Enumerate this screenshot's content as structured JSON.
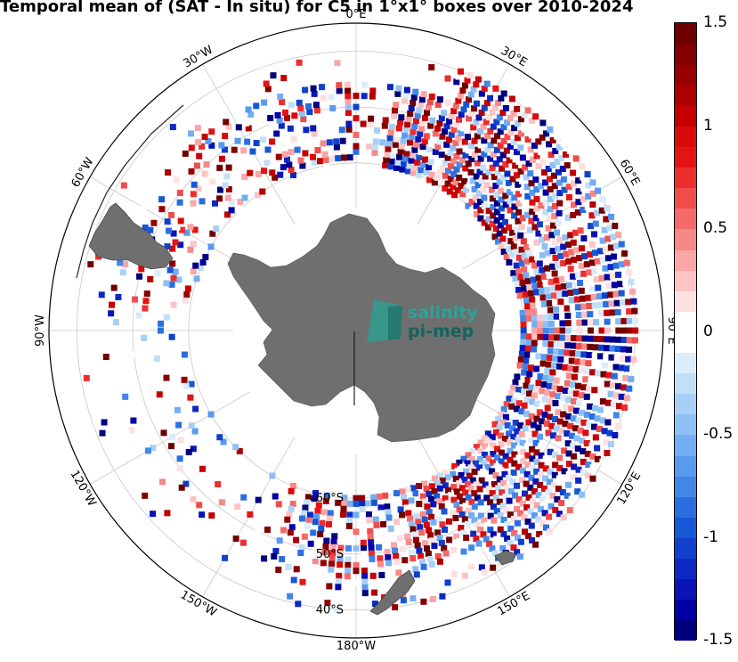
{
  "title": "Temporal mean of (SAT - In situ) for C5 in 1°x1° boxes over 2010-2024",
  "map": {
    "projection": "south-polar-stereographic",
    "longitude_labels": [
      {
        "text": "0°E",
        "lon": 0
      },
      {
        "text": "30°E",
        "lon": 30
      },
      {
        "text": "60°E",
        "lon": 60
      },
      {
        "text": "90°E",
        "lon": 90
      },
      {
        "text": "120°E",
        "lon": 120
      },
      {
        "text": "150°E",
        "lon": 150
      },
      {
        "text": "180°W",
        "lon": 180
      },
      {
        "text": "150°W",
        "lon": -150
      },
      {
        "text": "120°W",
        "lon": -120
      },
      {
        "text": "90°W",
        "lon": -90
      },
      {
        "text": "60°W",
        "lon": -60
      },
      {
        "text": "30°W",
        "lon": -30
      }
    ],
    "latitude_labels": [
      {
        "text": "60°S",
        "lat": -60
      },
      {
        "text": "50°S",
        "lat": -50
      },
      {
        "text": "40°S",
        "lat": -40
      }
    ],
    "land_color": "#6f6f6f",
    "grid_color": "#c8c8c8"
  },
  "logo": {
    "line1": "salinity",
    "line2": "pi-mep",
    "color1": "#2aa29a",
    "color2": "#13655f"
  },
  "colorbar": {
    "min": -1.5,
    "max": 1.5,
    "tick_labels": [
      "1.5",
      "1",
      "0.5",
      "0",
      "-0.5",
      "-1",
      "-1.5"
    ],
    "tick_values": [
      1.5,
      1,
      0.5,
      0,
      -0.5,
      -1,
      -1.5
    ],
    "colors": [
      "#00007f",
      "#0000a6",
      "#0a14b4",
      "#0d28c2",
      "#1040cc",
      "#1458d6",
      "#2a6ee0",
      "#4286e8",
      "#5a9aee",
      "#74aef2",
      "#8ec0f4",
      "#a8d0f6",
      "#c2dff8",
      "#dbecfb",
      "#ffffff",
      "#ffffff",
      "#fde0e0",
      "#fcc4c4",
      "#faa6a6",
      "#f78888",
      "#f46a6a",
      "#f04c4c",
      "#ec2e2e",
      "#e41414",
      "#d80a0a",
      "#c40000",
      "#ae0000",
      "#980000",
      "#840000",
      "#700000"
    ]
  }
}
